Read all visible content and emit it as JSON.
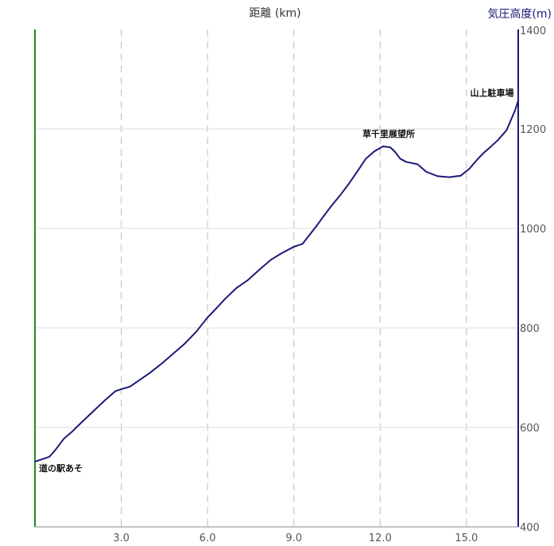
{
  "chart_data": {
    "type": "line",
    "xlabel": "距離 (km)",
    "ylabel": "気圧高度(m)",
    "xlim": [
      0,
      16.8
    ],
    "ylim": [
      400,
      1400
    ],
    "x_ticks": [
      "3.0",
      "6.0",
      "9.0",
      "12.0",
      "15.0"
    ],
    "y_ticks": [
      "400",
      "600",
      "800",
      "1000",
      "1200",
      "1400"
    ],
    "grid": true,
    "colors": {
      "line": "#1a1a7a",
      "left_axis": "#1e8c1e",
      "right_axis": "#1a1a7a",
      "grid_v": "#bdbdbd",
      "grid_h": "#dddddd"
    },
    "series": [
      {
        "x": [
          0.0,
          0.2,
          0.5,
          0.7,
          1.0,
          1.3,
          1.6,
          2.0,
          2.4,
          2.8,
          3.0,
          3.3,
          3.6,
          4.0,
          4.4,
          4.8,
          5.2,
          5.6,
          6.0,
          6.3,
          6.6,
          7.0,
          7.4,
          7.8,
          8.2,
          8.6,
          9.0,
          9.3,
          9.6,
          9.8,
          10.0,
          10.3,
          10.6,
          10.9,
          11.2,
          11.5,
          11.8,
          12.1,
          12.35,
          12.5,
          12.7,
          12.9,
          13.3,
          13.6,
          14.0,
          14.4,
          14.8,
          15.1,
          15.4,
          15.6,
          15.8,
          16.1,
          16.4,
          16.7,
          16.8
        ],
        "y": [
          531,
          535,
          541,
          554,
          577,
          592,
          609,
          631,
          653,
          673,
          677,
          682,
          694,
          710,
          728,
          748,
          768,
          792,
          821,
          839,
          858,
          880,
          896,
          917,
          937,
          951,
          963,
          969,
          991,
          1006,
          1022,
          1045,
          1066,
          1089,
          1114,
          1140,
          1155,
          1165,
          1163,
          1155,
          1140,
          1134,
          1129,
          1114,
          1105,
          1103,
          1106,
          1120,
          1140,
          1152,
          1162,
          1178,
          1198,
          1239,
          1257
        ]
      }
    ],
    "annotations": [
      {
        "text": "道の駅あそ",
        "x": 0.0,
        "y": 531
      },
      {
        "text": "草千里展望所",
        "x": 12.35,
        "y": 1165
      },
      {
        "text": "山上駐車場",
        "x": 16.8,
        "y": 1257
      }
    ]
  }
}
